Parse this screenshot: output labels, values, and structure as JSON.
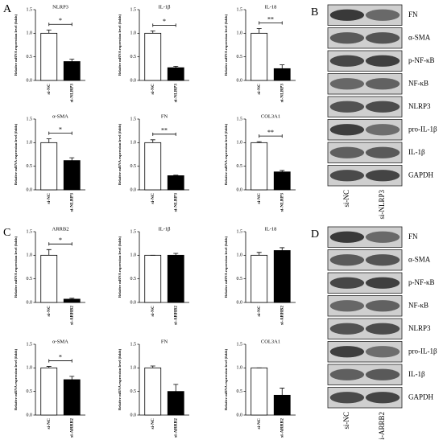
{
  "figure_labels": [
    "A",
    "C"
  ],
  "chart_data": [
    {
      "type": "bar",
      "title": "NLRP3",
      "categories": [
        "si-NC",
        "si-NLRP3"
      ],
      "values": [
        1.0,
        0.4
      ],
      "errors": [
        0.07,
        0.05
      ],
      "colors": [
        "#ffffff",
        "#000000"
      ],
      "ylim": [
        0,
        1.5
      ],
      "yticks": [
        {
          "value": 0,
          "label": "0.0"
        },
        {
          "value": 0.5,
          "label": "0.5"
        },
        {
          "value": 1,
          "label": "1.0"
        },
        {
          "value": 1.5,
          "label": "1.5"
        }
      ],
      "ylabel": "Relative mRNA expression level (folds)",
      "significance": "*"
    },
    {
      "type": "bar",
      "title": "IL-1β",
      "categories": [
        "si-NC",
        "si-NLRP3"
      ],
      "values": [
        1.0,
        0.27
      ],
      "errors": [
        0.05,
        0.03
      ],
      "colors": [
        "#ffffff",
        "#000000"
      ],
      "ylim": [
        0,
        1.5
      ],
      "yticks": [
        {
          "value": 0,
          "label": "0.0"
        },
        {
          "value": 0.5,
          "label": "0.5"
        },
        {
          "value": 1,
          "label": "1.0"
        },
        {
          "value": 1.5,
          "label": "1.5"
        }
      ],
      "ylabel": "Relative mRNA expression level (folds)",
      "significance": "*"
    },
    {
      "type": "bar",
      "title": "IL-18",
      "categories": [
        "si-NC",
        "si-NLRP3"
      ],
      "values": [
        1.0,
        0.25
      ],
      "errors": [
        0.1,
        0.08
      ],
      "colors": [
        "#ffffff",
        "#000000"
      ],
      "ylim": [
        0,
        1.5
      ],
      "yticks": [
        {
          "value": 0,
          "label": "0.0"
        },
        {
          "value": 0.5,
          "label": "0.5"
        },
        {
          "value": 1,
          "label": "1.0"
        },
        {
          "value": 1.5,
          "label": "1.5"
        }
      ],
      "ylabel": "Relative mRNA expression level (folds)",
      "significance": "**"
    },
    {
      "type": "bar",
      "title": "α-SMA",
      "categories": [
        "si-NC",
        "si-NLRP3"
      ],
      "values": [
        1.0,
        0.62
      ],
      "errors": [
        0.08,
        0.06
      ],
      "colors": [
        "#ffffff",
        "#000000"
      ],
      "ylim": [
        0,
        1.5
      ],
      "yticks": [
        {
          "value": 0,
          "label": "0.0"
        },
        {
          "value": 0.5,
          "label": "0.5"
        },
        {
          "value": 1,
          "label": "1.0"
        },
        {
          "value": 1.5,
          "label": "1.5"
        }
      ],
      "ylabel": "Relative mRNA expression level (folds)",
      "significance": "*"
    },
    {
      "type": "bar",
      "title": "FN",
      "categories": [
        "si-NC",
        "si-NLRP3"
      ],
      "values": [
        1.0,
        0.3
      ],
      "errors": [
        0.06,
        0.01
      ],
      "colors": [
        "#ffffff",
        "#000000"
      ],
      "ylim": [
        0,
        1.5
      ],
      "yticks": [
        {
          "value": 0,
          "label": "0.0"
        },
        {
          "value": 0.5,
          "label": "0.5"
        },
        {
          "value": 1,
          "label": "1.0"
        },
        {
          "value": 1.5,
          "label": "1.5"
        }
      ],
      "ylabel": "Relative mRNA expression level (folds)",
      "significance": "**"
    },
    {
      "type": "bar",
      "title": "COL3A1",
      "categories": [
        "si-NC",
        "si-NLRP3"
      ],
      "values": [
        1.0,
        0.38
      ],
      "errors": [
        0.02,
        0.03
      ],
      "colors": [
        "#ffffff",
        "#000000"
      ],
      "ylim": [
        0,
        1.5
      ],
      "yticks": [
        {
          "value": 0,
          "label": "0.0"
        },
        {
          "value": 0.5,
          "label": "0.5"
        },
        {
          "value": 1,
          "label": "1.0"
        },
        {
          "value": 1.5,
          "label": "1.5"
        }
      ],
      "ylabel": "Relative mRNA expression level (folds)",
      "significance": "**"
    },
    {
      "type": "bar",
      "title": "ARRB2",
      "categories": [
        "si-NC",
        "si-ARRB2"
      ],
      "values": [
        1.0,
        0.07
      ],
      "errors": [
        0.12,
        0.02
      ],
      "colors": [
        "#ffffff",
        "#000000"
      ],
      "ylim": [
        0,
        1.5
      ],
      "yticks": [
        {
          "value": 0,
          "label": "0.0"
        },
        {
          "value": 0.5,
          "label": "0.5"
        },
        {
          "value": 1,
          "label": "1.0"
        },
        {
          "value": 1.5,
          "label": "1.5"
        }
      ],
      "ylabel": "Relative mRNA expression level (folds)",
      "significance": "*"
    },
    {
      "type": "bar",
      "title": "IL-1β",
      "categories": [
        "si-NC",
        "si-ARRB2"
      ],
      "values": [
        1.0,
        1.0
      ],
      "errors": [
        0.0,
        0.04
      ],
      "colors": [
        "#ffffff",
        "#000000"
      ],
      "ylim": [
        0,
        1.5
      ],
      "yticks": [
        {
          "value": 0,
          "label": "0.0"
        },
        {
          "value": 0.5,
          "label": "0.5"
        },
        {
          "value": 1,
          "label": "1.0"
        },
        {
          "value": 1.5,
          "label": "1.5"
        }
      ],
      "ylabel": "Relative mRNA expression level (folds)"
    },
    {
      "type": "bar",
      "title": "IL-18",
      "categories": [
        "si-NC",
        "si-ARRB2"
      ],
      "values": [
        1.0,
        1.1
      ],
      "errors": [
        0.06,
        0.06
      ],
      "colors": [
        "#ffffff",
        "#000000"
      ],
      "ylim": [
        0,
        1.5
      ],
      "yticks": [
        {
          "value": 0,
          "label": "0.0"
        },
        {
          "value": 0.5,
          "label": "0.5"
        },
        {
          "value": 1,
          "label": "1.0"
        },
        {
          "value": 1.5,
          "label": "1.5"
        }
      ],
      "ylabel": "Relative mRNA expression level (folds)"
    },
    {
      "type": "bar",
      "title": "α-SMA",
      "categories": [
        "si-NC",
        "si-ARRB2"
      ],
      "values": [
        1.0,
        0.75
      ],
      "errors": [
        0.03,
        0.07
      ],
      "colors": [
        "#ffffff",
        "#000000"
      ],
      "ylim": [
        0,
        1.5
      ],
      "yticks": [
        {
          "value": 0,
          "label": "0.0"
        },
        {
          "value": 0.5,
          "label": "0.5"
        },
        {
          "value": 1,
          "label": "1.0"
        },
        {
          "value": 1.5,
          "label": "1.5"
        }
      ],
      "ylabel": "Relative mRNA expression level (folds)",
      "significance": "*"
    },
    {
      "type": "bar",
      "title": "FN",
      "categories": [
        "si-NC",
        "si-ARRB2"
      ],
      "values": [
        1.0,
        0.5
      ],
      "errors": [
        0.04,
        0.15
      ],
      "colors": [
        "#ffffff",
        "#000000"
      ],
      "ylim": [
        0,
        1.5
      ],
      "yticks": [
        {
          "value": 0,
          "label": "0.0"
        },
        {
          "value": 0.5,
          "label": "0.5"
        },
        {
          "value": 1,
          "label": "1.0"
        },
        {
          "value": 1.5,
          "label": "1.5"
        }
      ],
      "ylabel": "Relative mRNA expression level (folds)"
    },
    {
      "type": "bar",
      "title": "COL3A1",
      "categories": [
        "si-NC",
        "si-ARRB2"
      ],
      "values": [
        1.0,
        0.42
      ],
      "errors": [
        0.0,
        0.15
      ],
      "colors": [
        "#ffffff",
        "#000000"
      ],
      "ylim": [
        0,
        1.5
      ],
      "yticks": [
        {
          "value": 0,
          "label": "0.0"
        },
        {
          "value": 0.5,
          "label": "0.5"
        },
        {
          "value": 1,
          "label": "1.0"
        },
        {
          "value": 1.5,
          "label": "1.5"
        }
      ],
      "ylabel": "Relative mRNA expression level (folds)"
    }
  ],
  "blots": [
    {
      "letter": "B",
      "bands": [
        "FN",
        "α-SMA",
        "p-NF-κB",
        "NF-κB",
        "NLRP3",
        "pro-IL-1β",
        "IL-1β",
        "GAPDH"
      ],
      "lanes": [
        "si-NC",
        "si-NLRP3"
      ]
    },
    {
      "letter": "D",
      "bands": [
        "FN",
        "α-SMA",
        "p-NF-κB",
        "NF-κB",
        "NLRP3",
        "pro-IL-1β",
        "IL-1β",
        "GAPDH"
      ],
      "lanes": [
        "si-NC",
        "si-ARRB2"
      ]
    }
  ]
}
